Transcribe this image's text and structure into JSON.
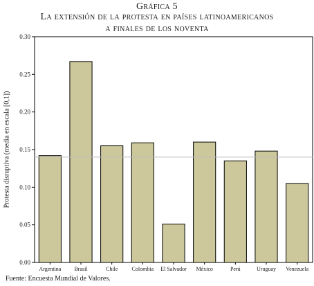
{
  "header": {
    "line1": "Gráfica 5",
    "line2": "La extensión de la protesta en países latinoamericanos",
    "line3": "a finales de los noventa"
  },
  "footer": {
    "source": "Fuente: Encuesta Mundial de Valores."
  },
  "chart_data": {
    "type": "bar",
    "title": "Gráfica 5 La extensión de la protesta en países latinoamericanos a finales de los noventa",
    "xlabel": "",
    "ylabel": "Protesta disruptiva (media en escala [0,1])",
    "categories": [
      "Argentina",
      "Brasil",
      "Chile",
      "Colombia",
      "El Salvador",
      "México",
      "Perú",
      "Uruguay",
      "Venezuela"
    ],
    "values": [
      0.142,
      0.267,
      0.155,
      0.159,
      0.051,
      0.16,
      0.135,
      0.148,
      0.105
    ],
    "ylim": [
      0,
      0.3
    ],
    "yticks": [
      "0.00",
      "0.05",
      "0.10",
      "0.15",
      "0.20",
      "0.25",
      "0.30"
    ],
    "reference_line": 0.14,
    "bar_color": "#cdc89b",
    "grid": false,
    "legend": "none"
  }
}
